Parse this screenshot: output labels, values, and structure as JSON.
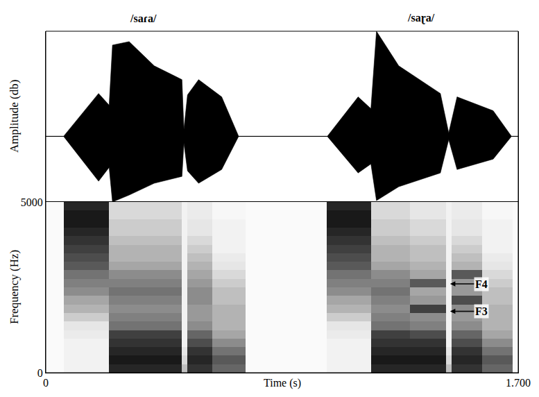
{
  "chart_data": [
    {
      "type": "area",
      "y_label": "Amplitude (db)",
      "annotations": [
        {
          "text": "/saɾa/",
          "x": 0.35
        },
        {
          "text": "/saɽa/",
          "x": 1.35
        }
      ],
      "x": [
        0,
        0.064,
        0.19,
        0.228,
        0.24,
        0.3,
        0.39,
        0.49,
        0.497,
        0.51,
        0.55,
        0.633,
        0.694,
        1.013,
        1.124,
        1.17,
        1.19,
        1.27,
        1.42,
        1.45,
        1.48,
        1.61,
        1.676,
        1.7
      ],
      "upper": [
        0,
        0,
        0.62,
        0.45,
        1.32,
        1.37,
        1.02,
        0.82,
        0.1,
        0.6,
        0.82,
        0.57,
        0,
        0,
        0.57,
        0.4,
        1.52,
        1.02,
        0.62,
        0.05,
        0.57,
        0.37,
        0,
        0
      ],
      "lower": [
        0,
        0,
        -0.65,
        -0.45,
        -0.95,
        -0.85,
        -0.68,
        -0.58,
        -0.1,
        -0.5,
        -0.68,
        -0.48,
        0,
        0,
        -0.53,
        -0.4,
        -0.93,
        -0.73,
        -0.53,
        -0.05,
        -0.48,
        -0.33,
        0,
        0
      ],
      "color": "#000000",
      "xlim": [
        0,
        1.7
      ],
      "ylim": [
        -0.95,
        1.52
      ],
      "tick_labels": false,
      "grid": false
    },
    {
      "type": "heatmap",
      "x_label": "Time (s)",
      "y_label": "Frequency (Hz)",
      "time_edges": [
        0,
        0.064,
        0.228,
        0.36,
        0.49,
        0.51,
        0.6,
        0.72,
        1.01,
        1.17,
        1.31,
        1.44,
        1.46,
        1.57,
        1.68,
        1.7
      ],
      "frequency_edges": [
        0,
        250,
        500,
        750,
        1000,
        1250,
        1500,
        1750,
        2000,
        2250,
        2500,
        2750,
        3000,
        3250,
        3500,
        3750,
        4000,
        4250,
        4500,
        4750,
        5000
      ],
      "z": [
        [
          0.02,
          0.05,
          0.85,
          0.85,
          0.25,
          0.8,
          0.6,
          0.02,
          0.05,
          0.85,
          0.85,
          0.25,
          0.8,
          0.6,
          0.02
        ],
        [
          0.02,
          0.05,
          0.9,
          0.9,
          0.15,
          0.85,
          0.65,
          0.02,
          0.05,
          0.9,
          0.9,
          0.15,
          0.85,
          0.65,
          0.02
        ],
        [
          0.02,
          0.05,
          0.85,
          0.85,
          0.1,
          0.8,
          0.55,
          0.02,
          0.05,
          0.85,
          0.85,
          0.1,
          0.8,
          0.55,
          0.02
        ],
        [
          0.02,
          0.05,
          0.8,
          0.8,
          0.05,
          0.7,
          0.45,
          0.02,
          0.05,
          0.8,
          0.8,
          0.05,
          0.7,
          0.45,
          0.02
        ],
        [
          0.02,
          0.08,
          0.75,
          0.75,
          0.05,
          0.6,
          0.35,
          0.02,
          0.08,
          0.75,
          0.7,
          0.05,
          0.6,
          0.35,
          0.02
        ],
        [
          0.02,
          0.1,
          0.55,
          0.55,
          0.05,
          0.45,
          0.3,
          0.02,
          0.1,
          0.55,
          0.5,
          0.05,
          0.45,
          0.3,
          0.02
        ],
        [
          0.02,
          0.2,
          0.5,
          0.5,
          0.05,
          0.4,
          0.3,
          0.02,
          0.2,
          0.5,
          0.45,
          0.05,
          0.4,
          0.3,
          0.02
        ],
        [
          0.02,
          0.3,
          0.45,
          0.45,
          0.05,
          0.4,
          0.3,
          0.02,
          0.3,
          0.45,
          0.75,
          0.05,
          0.45,
          0.3,
          0.02
        ],
        [
          0.02,
          0.35,
          0.5,
          0.5,
          0.05,
          0.45,
          0.25,
          0.02,
          0.35,
          0.5,
          0.4,
          0.05,
          0.7,
          0.25,
          0.02
        ],
        [
          0.02,
          0.45,
          0.55,
          0.55,
          0.05,
          0.45,
          0.25,
          0.02,
          0.45,
          0.55,
          0.35,
          0.05,
          0.4,
          0.25,
          0.02
        ],
        [
          0.02,
          0.5,
          0.5,
          0.5,
          0.05,
          0.4,
          0.2,
          0.02,
          0.5,
          0.5,
          0.65,
          0.05,
          0.4,
          0.2,
          0.02
        ],
        [
          0.02,
          0.55,
          0.45,
          0.45,
          0.05,
          0.35,
          0.15,
          0.02,
          0.55,
          0.45,
          0.35,
          0.05,
          0.65,
          0.15,
          0.02
        ],
        [
          0.02,
          0.65,
          0.35,
          0.35,
          0.05,
          0.3,
          0.1,
          0.02,
          0.65,
          0.35,
          0.3,
          0.05,
          0.3,
          0.1,
          0.02
        ],
        [
          0.02,
          0.7,
          0.3,
          0.3,
          0.05,
          0.25,
          0.08,
          0.02,
          0.7,
          0.3,
          0.25,
          0.05,
          0.25,
          0.08,
          0.02
        ],
        [
          0.02,
          0.75,
          0.3,
          0.3,
          0.05,
          0.2,
          0.05,
          0.02,
          0.75,
          0.3,
          0.25,
          0.05,
          0.2,
          0.05,
          0.02
        ],
        [
          0.02,
          0.8,
          0.25,
          0.25,
          0.05,
          0.15,
          0.05,
          0.02,
          0.8,
          0.25,
          0.2,
          0.05,
          0.15,
          0.05,
          0.02
        ],
        [
          0.02,
          0.85,
          0.2,
          0.2,
          0.05,
          0.1,
          0.05,
          0.02,
          0.85,
          0.2,
          0.15,
          0.05,
          0.1,
          0.05,
          0.02
        ],
        [
          0.02,
          0.9,
          0.2,
          0.2,
          0.05,
          0.1,
          0.05,
          0.02,
          0.9,
          0.2,
          0.15,
          0.05,
          0.1,
          0.05,
          0.02
        ],
        [
          0.02,
          0.9,
          0.15,
          0.15,
          0.05,
          0.08,
          0.03,
          0.02,
          0.9,
          0.15,
          0.1,
          0.05,
          0.08,
          0.03,
          0.02
        ],
        [
          0.02,
          0.85,
          0.15,
          0.15,
          0.05,
          0.08,
          0.03,
          0.02,
          0.85,
          0.15,
          0.1,
          0.05,
          0.08,
          0.03,
          0.02
        ]
      ],
      "zlim": [
        0,
        1
      ],
      "colors": [
        "#ffffff",
        "#000000"
      ],
      "xlim": [
        0,
        1.7
      ],
      "ylim": [
        0,
        5000
      ],
      "xticks": [
        0,
        {
          "value": 1.7,
          "label": "1.700"
        }
      ],
      "yticks": [
        0,
        5000
      ],
      "annotations": [
        {
          "text": "F4",
          "x": 1.455,
          "y": 2600
        },
        {
          "text": "F3",
          "x": 1.455,
          "y": 1800
        }
      ],
      "grid": false
    }
  ]
}
